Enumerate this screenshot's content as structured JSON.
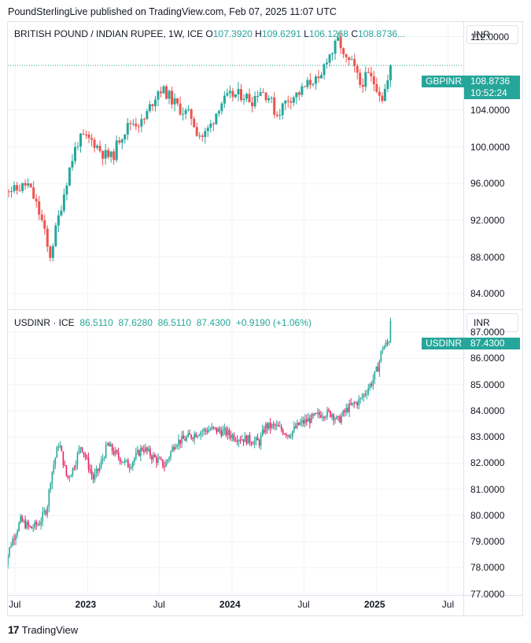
{
  "publish_note": "PoundSterlingLive published on TradingView.com, Feb 07, 2025 11:07 UTC",
  "brand": {
    "logo": "17",
    "name": "TradingView"
  },
  "colors": {
    "up": "#26a69a",
    "down": "#ef5350",
    "down_pink": "#e91e63",
    "grid": "#f0f3fa",
    "border": "#e0e3eb"
  },
  "top": {
    "legend": {
      "symbol": "BRITISH POUND / INDIAN RUPEE, 1W, ICE",
      "o_label": "O",
      "o": "107.3920",
      "h_label": "H",
      "h": "109.6291",
      "l_label": "L",
      "l": "106.1268",
      "c_label": "C",
      "c": "108.8736..."
    },
    "currency": "INR",
    "last_symbol": "GBPINR",
    "last_price": "108.8736",
    "countdown": "10:52:24"
  },
  "bottom": {
    "legend": {
      "symbol": "USDINR · ICE",
      "o": "86.5110",
      "h": "87.6280",
      "l": "86.5110",
      "c": "87.4300",
      "change": "+0.9190 (+1.06%)"
    },
    "currency": "INR",
    "last_symbol": "USDINR",
    "last_price": "87.4300"
  },
  "chart_data": [
    {
      "type": "candlestick",
      "name": "GBPINR weekly",
      "title": "BRITISH POUND / INDIAN RUPEE, 1W, ICE",
      "y_ticks": [
        "112.0000",
        "104.0000",
        "100.0000",
        "96.0000",
        "92.0000",
        "88.0000",
        "84.0000"
      ],
      "y_tick_values": [
        112,
        104,
        100,
        96,
        92,
        88,
        84
      ],
      "ylim": [
        82.3,
        113.6
      ],
      "x_ticks": [
        "Jul",
        "2023",
        "Jul",
        "2024",
        "Jul",
        "2025",
        "Jul"
      ],
      "current_price": 108.8736,
      "anchors": [
        [
          "2022-06-01",
          95.8
        ],
        [
          "2022-07-01",
          95.2
        ],
        [
          "2022-08-01",
          96.0
        ],
        [
          "2022-08-20",
          94.2
        ],
        [
          "2022-09-10",
          91.5
        ],
        [
          "2022-09-26",
          87.8
        ],
        [
          "2022-10-20",
          92.5
        ],
        [
          "2022-11-15",
          97.5
        ],
        [
          "2022-12-05",
          100.5
        ],
        [
          "2022-12-20",
          101.0
        ],
        [
          "2023-01-15",
          100.6
        ],
        [
          "2023-02-10",
          99.2
        ],
        [
          "2023-03-05",
          98.8
        ],
        [
          "2023-03-20",
          100.8
        ],
        [
          "2023-04-20",
          102.7
        ],
        [
          "2023-05-20",
          102.6
        ],
        [
          "2023-06-10",
          104.6
        ],
        [
          "2023-07-01",
          106.4
        ],
        [
          "2023-07-20",
          105.8
        ],
        [
          "2023-08-20",
          104.2
        ],
        [
          "2023-09-20",
          103.3
        ],
        [
          "2023-10-05",
          101.6
        ],
        [
          "2023-10-20",
          101.1
        ],
        [
          "2023-11-10",
          102.5
        ],
        [
          "2023-12-01",
          104.7
        ],
        [
          "2023-12-30",
          105.6
        ],
        [
          "2024-01-30",
          105.7
        ],
        [
          "2024-02-20",
          105.0
        ],
        [
          "2024-03-10",
          106.3
        ],
        [
          "2024-04-05",
          105.4
        ],
        [
          "2024-04-22",
          103.4
        ],
        [
          "2024-05-20",
          105.2
        ],
        [
          "2024-06-20",
          105.9
        ],
        [
          "2024-07-10",
          106.8
        ],
        [
          "2024-07-25",
          107.4
        ],
        [
          "2024-08-10",
          106.8
        ],
        [
          "2024-08-25",
          109.6
        ],
        [
          "2024-09-10",
          110.3
        ],
        [
          "2024-09-28",
          111.8
        ],
        [
          "2024-10-10",
          109.5
        ],
        [
          "2024-11-01",
          109.0
        ],
        [
          "2024-11-20",
          106.8
        ],
        [
          "2024-12-10",
          107.8
        ],
        [
          "2024-12-31",
          106.7
        ],
        [
          "2025-01-15",
          105.4
        ],
        [
          "2025-01-31",
          107.4
        ],
        [
          "2025-02-07",
          108.87
        ]
      ]
    },
    {
      "type": "candlestick",
      "name": "USDINR daily",
      "title": "USDINR · ICE",
      "y_ticks": [
        "87.0000",
        "86.0000",
        "85.0000",
        "84.0000",
        "83.0000",
        "82.0000",
        "81.0000",
        "80.0000",
        "79.0000",
        "78.0000",
        "77.0000"
      ],
      "y_tick_values": [
        87,
        86,
        85,
        84,
        83,
        82,
        81,
        80,
        79,
        78,
        77
      ],
      "ylim": [
        76.96,
        87.85
      ],
      "x_ticks": [
        "Jul",
        "2023",
        "Jul",
        "2024",
        "Jul",
        "2025",
        "Jul"
      ],
      "current_price": 87.43,
      "anchors": [
        [
          "2022-06-01",
          77.8
        ],
        [
          "2022-06-20",
          78.9
        ],
        [
          "2022-07-15",
          79.8
        ],
        [
          "2022-08-10",
          79.5
        ],
        [
          "2022-08-31",
          79.7
        ],
        [
          "2022-09-20",
          80.3
        ],
        [
          "2022-09-30",
          81.5
        ],
        [
          "2022-10-20",
          82.8
        ],
        [
          "2022-11-10",
          81.4
        ],
        [
          "2022-11-25",
          81.8
        ],
        [
          "2022-12-15",
          82.7
        ],
        [
          "2023-01-15",
          81.4
        ],
        [
          "2023-01-30",
          81.8
        ],
        [
          "2023-02-20",
          82.7
        ],
        [
          "2023-03-15",
          82.3
        ],
        [
          "2023-04-15",
          81.9
        ],
        [
          "2023-05-20",
          82.6
        ],
        [
          "2023-06-10",
          82.3
        ],
        [
          "2023-07-15",
          81.9
        ],
        [
          "2023-08-10",
          82.8
        ],
        [
          "2023-09-01",
          82.9
        ],
        [
          "2023-10-10",
          83.2
        ],
        [
          "2023-11-10",
          83.3
        ],
        [
          "2023-12-10",
          83.2
        ],
        [
          "2024-01-10",
          83.0
        ],
        [
          "2024-02-10",
          82.9
        ],
        [
          "2024-03-10",
          82.8
        ],
        [
          "2024-03-25",
          83.4
        ],
        [
          "2024-04-20",
          83.4
        ],
        [
          "2024-05-25",
          83.1
        ],
        [
          "2024-06-20",
          83.5
        ],
        [
          "2024-07-20",
          83.7
        ],
        [
          "2024-08-15",
          83.9
        ],
        [
          "2024-09-10",
          83.9
        ],
        [
          "2024-09-25",
          83.6
        ],
        [
          "2024-10-20",
          84.1
        ],
        [
          "2024-11-20",
          84.4
        ],
        [
          "2024-12-20",
          85.1
        ],
        [
          "2025-01-05",
          85.7
        ],
        [
          "2025-01-15",
          86.4
        ],
        [
          "2025-01-31",
          86.6
        ],
        [
          "2025-02-07",
          87.43
        ]
      ]
    }
  ]
}
